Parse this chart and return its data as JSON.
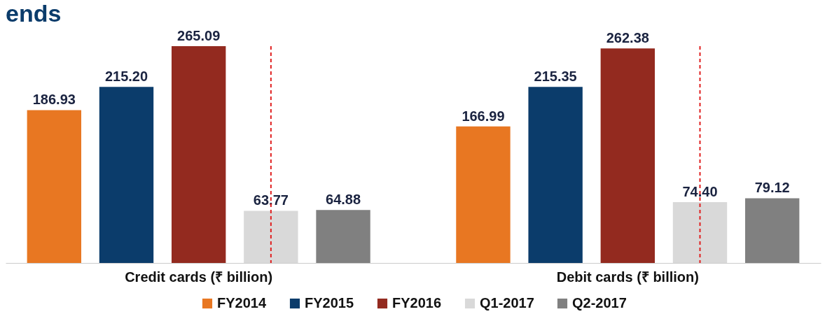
{
  "chart_data": {
    "type": "bar",
    "title": "ends",
    "categories": [
      "Credit cards (₹ billion)",
      "Debit cards (₹ billion)"
    ],
    "series": [
      {
        "name": "FY2014",
        "color": "#e87722",
        "values": [
          186.93,
          166.99
        ],
        "value_labels": [
          "186.93",
          "166.99"
        ]
      },
      {
        "name": "FY2015",
        "color": "#0b3c6b",
        "values": [
          215.2,
          215.35
        ],
        "value_labels": [
          "215.20",
          "215.35"
        ]
      },
      {
        "name": "FY2016",
        "color": "#932a1f",
        "values": [
          265.09,
          262.38
        ],
        "value_labels": [
          "265.09",
          "262.38"
        ]
      },
      {
        "name": "Q1-2017",
        "color": "#d9d9d9",
        "values": [
          63.77,
          74.4
        ],
        "value_labels": [
          "63.77",
          "74.40"
        ]
      },
      {
        "name": "Q2-2017",
        "color": "#808080",
        "values": [
          64.88,
          79.12
        ],
        "value_labels": [
          "64.88",
          "79.12"
        ]
      }
    ],
    "ref_lines": [
      {
        "axis": "x",
        "value": "Credit cards (₹ billion)",
        "color": "#e02020",
        "line_style": "dashed"
      },
      {
        "axis": "x",
        "value": "Debit cards (₹ billion)",
        "color": "#e02020",
        "line_style": "dashed"
      }
    ],
    "tick_labels": "x",
    "legend": "bottom"
  }
}
